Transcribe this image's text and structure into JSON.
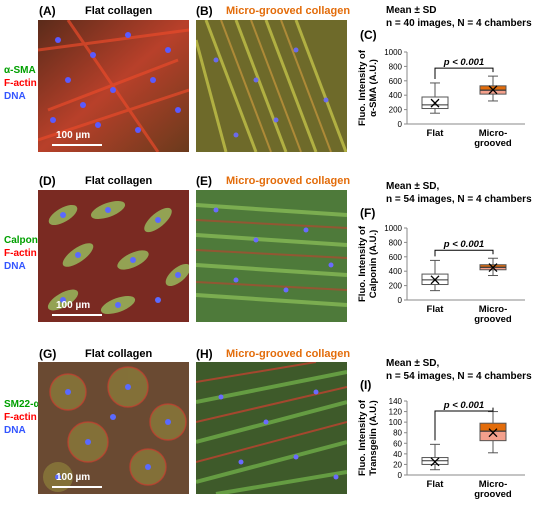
{
  "rows": [
    {
      "stains": {
        "marker": "α-SMA",
        "factin": "F-actin",
        "dna": "DNA"
      },
      "left": {
        "letter": "(A)",
        "title": "Flat collagen",
        "scalebar": "100 µm"
      },
      "right": {
        "letter": "(B)",
        "title": "Micro-grooved collagen"
      },
      "chart": {
        "letter": "(C)",
        "stats_line1": "Mean ± SD",
        "stats_line2": "n = 40 images, N = 4 chambers"
      }
    },
    {
      "stains": {
        "marker": "Calponin",
        "factin": "F-actin",
        "dna": "DNA"
      },
      "left": {
        "letter": "(D)",
        "title": "Flat collagen",
        "scalebar": "100 µm"
      },
      "right": {
        "letter": "(E)",
        "title": "Micro-grooved collagen"
      },
      "chart": {
        "letter": "(F)",
        "stats_line1": "Mean ± SD,",
        "stats_line2": "n = 54 images, N = 4 chambers"
      }
    },
    {
      "stains": {
        "marker": "SM22-α",
        "factin": "F-actin",
        "dna": "DNA"
      },
      "left": {
        "letter": "(G)",
        "title": "Flat collagen",
        "scalebar": "100 µm"
      },
      "right": {
        "letter": "(H)",
        "title": "Micro-grooved collagen"
      },
      "chart": {
        "letter": "(I)",
        "stats_line1": "Mean ± SD,",
        "stats_line2": "n = 54 images, N = 4 chambers"
      }
    }
  ],
  "colors": {
    "marker_green": "#00a000",
    "factin_red": "#ff0000",
    "dna_blue": "#3355ff",
    "orange_title": "#e36c0a",
    "flat_box": "#ffffff",
    "grooved_box_upper": "#e36c0a",
    "grooved_box_lower": "#f4a08c"
  },
  "chart_data": [
    {
      "type": "box",
      "categories": [
        "Flat",
        "Micro-\ngrooved"
      ],
      "ylabel": "Fluo. Intensity of α-SMA (A.U.)",
      "ylim": [
        0,
        1000
      ],
      "yticks": [
        0,
        200,
        400,
        600,
        800,
        1000
      ],
      "boxes": [
        {
          "whisker_low": 150,
          "q1": 215,
          "median": 265,
          "q3": 375,
          "whisker_high": 570,
          "mean": 290
        },
        {
          "whisker_low": 320,
          "q1": 415,
          "median": 470,
          "q3": 530,
          "whisker_high": 665,
          "mean": 475
        }
      ],
      "annotation": "p < 0.001"
    },
    {
      "type": "box",
      "categories": [
        "Flat",
        "Micro-\ngrooved"
      ],
      "ylabel": "Fluo. Intensity of Calponin (A.U.)",
      "ylim": [
        0,
        1000
      ],
      "yticks": [
        0,
        200,
        400,
        600,
        800,
        1000
      ],
      "boxes": [
        {
          "whisker_low": 130,
          "q1": 215,
          "median": 280,
          "q3": 360,
          "whisker_high": 550,
          "mean": 280
        },
        {
          "whisker_low": 340,
          "q1": 420,
          "median": 455,
          "q3": 490,
          "whisker_high": 580,
          "mean": 450
        }
      ],
      "annotation": "p < 0.001"
    },
    {
      "type": "box",
      "categories": [
        "Flat",
        "Micro-\ngrooved"
      ],
      "ylabel": "Fluo. Intensity of Transgelin (A.U.)",
      "ylim": [
        0,
        140
      ],
      "yticks": [
        0,
        20,
        40,
        60,
        80,
        100,
        120,
        140
      ],
      "boxes": [
        {
          "whisker_low": 10,
          "q1": 20,
          "median": 27,
          "q3": 33,
          "whisker_high": 58,
          "mean": 25
        },
        {
          "whisker_low": 42,
          "q1": 65,
          "median": 83,
          "q3": 98,
          "whisker_high": 120,
          "mean": 80
        }
      ],
      "annotation": "p < 0.001"
    }
  ]
}
